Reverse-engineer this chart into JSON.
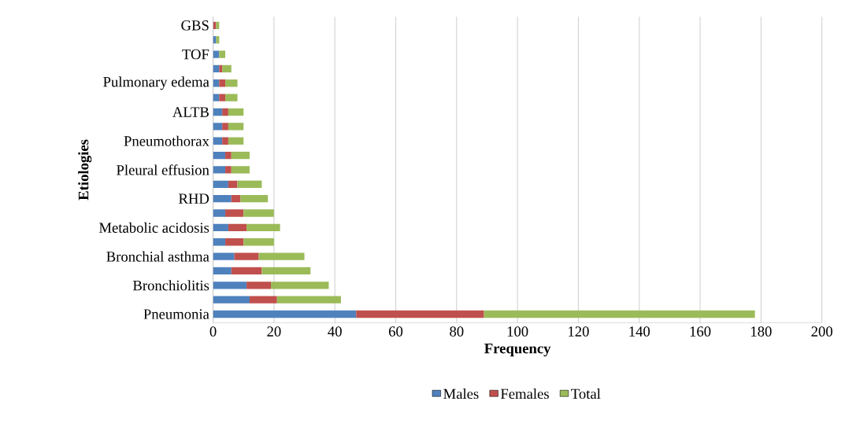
{
  "chart_data": {
    "type": "bar",
    "orientation": "horizontal",
    "stacked": true,
    "xlabel": "Frequency",
    "ylabel": "Etiologies",
    "categories": [
      "GBS",
      null,
      "TOF",
      null,
      "Pulmonary edema",
      null,
      "ALTB",
      null,
      "Pneumothorax",
      null,
      "Pleural effusion",
      null,
      "RHD",
      null,
      "Metabolic acidosis",
      null,
      "Bronchial asthma",
      null,
      "Bronchiolitis",
      null,
      "Pneumonia"
    ],
    "series": [
      {
        "name": "Males",
        "color": "#4f81bd",
        "values": [
          0,
          1,
          2,
          2,
          2,
          2,
          3,
          3,
          3,
          4,
          4,
          5,
          6,
          4,
          5,
          4,
          7,
          6,
          11,
          12,
          47
        ]
      },
      {
        "name": "Females",
        "color": "#c0504d",
        "values": [
          1,
          0,
          0,
          1,
          2,
          2,
          2,
          2,
          2,
          2,
          2,
          3,
          3,
          6,
          6,
          6,
          8,
          10,
          8,
          9,
          42
        ]
      },
      {
        "name": "Total",
        "color": "#9bbb59",
        "values": [
          1,
          1,
          2,
          3,
          4,
          4,
          5,
          5,
          5,
          6,
          6,
          8,
          9,
          10,
          11,
          10,
          15,
          16,
          19,
          21,
          89
        ]
      }
    ],
    "xlim": [
      0,
      200
    ],
    "xticks": [
      0,
      20,
      40,
      60,
      80,
      100,
      120,
      140,
      160,
      180,
      200
    ],
    "grid": "x",
    "legend": "bottom"
  }
}
